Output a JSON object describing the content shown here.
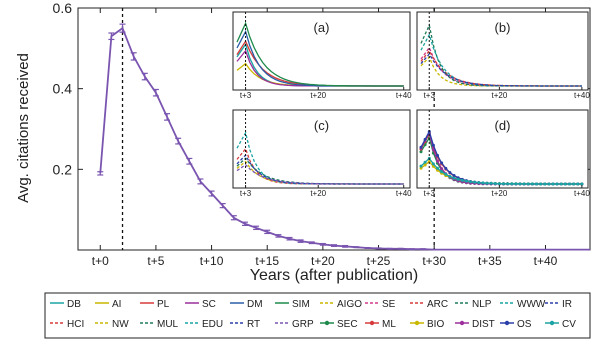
{
  "chart_data": {
    "type": "line",
    "xlabel": "Years (after publication)",
    "ylabel": "Avg. citations received",
    "ylim": [
      0.0,
      0.6
    ],
    "yticks": [
      "0.2",
      "0.4",
      "0.6"
    ],
    "yticks_values": [
      0.2,
      0.4,
      0.6
    ],
    "xticks": [
      "t+0",
      "t+5",
      "t+10",
      "t+15",
      "t+20",
      "t+25",
      "t+30",
      "t+35",
      "t+40"
    ],
    "xticks_values": [
      0,
      5,
      10,
      15,
      20,
      25,
      30,
      35,
      40
    ],
    "xlim": [
      -2,
      44
    ],
    "grid": false,
    "vlines": [
      2,
      30
    ],
    "series": [
      {
        "color": "#7a55b0",
        "x": [
          0,
          1,
          2,
          3,
          4,
          5,
          6,
          7,
          8,
          9,
          10,
          11,
          12,
          13,
          14,
          15,
          16,
          17,
          18,
          19,
          20,
          21,
          22,
          23,
          24,
          25,
          26,
          27,
          28,
          29,
          30,
          31,
          32,
          33,
          34,
          35,
          36,
          37,
          38,
          39,
          40,
          41,
          42,
          43,
          44
        ],
        "values": [
          0.19,
          0.53,
          0.55,
          0.48,
          0.43,
          0.39,
          0.33,
          0.27,
          0.22,
          0.17,
          0.14,
          0.11,
          0.08,
          0.065,
          0.055,
          0.045,
          0.035,
          0.028,
          0.022,
          0.018,
          0.014,
          0.011,
          0.009,
          0.007,
          0.005,
          0.004,
          0.003,
          0.003,
          0.002,
          0.002,
          0.001,
          0.001,
          0.001,
          0.001,
          0.001,
          0.001,
          0.001,
          0.001,
          0.001,
          0.001,
          0.001,
          0.001,
          0.001,
          0.001,
          0.001
        ],
        "error": [
          0.004,
          0.008,
          0.01,
          0.009,
          0.008,
          0.008,
          0.008,
          0.007,
          0.007,
          0.006,
          0.006,
          0.005,
          0.005,
          0.004,
          0.004,
          0.004,
          0.003,
          0.003,
          0.003,
          0.002,
          0.002,
          0.002,
          0.002,
          0.001,
          0.001,
          0.001,
          0.001,
          0.001,
          0.001,
          0.001,
          0,
          0,
          0,
          0,
          0,
          0,
          0,
          0,
          0,
          0,
          0,
          0,
          0,
          0,
          0
        ]
      }
    ],
    "insets": [
      {
        "label": "(a)",
        "xticks": [
          "t+3",
          "t+20",
          "t+40"
        ],
        "xticks_values": [
          3,
          20,
          40
        ],
        "vline": 3,
        "ymax": 1.0,
        "series": [
          {
            "color": "#1aa3a3",
            "dash": "solid",
            "peak": 0.65
          },
          {
            "color": "#c9b700",
            "dash": "solid",
            "peak": 0.35
          },
          {
            "color": "#d63b3b",
            "dash": "solid",
            "peak": 0.7
          },
          {
            "color": "#9b2f9b",
            "dash": "solid",
            "peak": 0.55
          },
          {
            "color": "#2a5da8",
            "dash": "solid",
            "peak": 0.85
          },
          {
            "color": "#1f8a4c",
            "dash": "solid",
            "peak": 0.98
          }
        ]
      },
      {
        "label": "(b)",
        "xticks": [
          "t+3",
          "t+20",
          "t+40"
        ],
        "xticks_values": [
          3,
          20,
          40
        ],
        "vline": 3,
        "ymax": 1.0,
        "series": [
          {
            "color": "#c9b700",
            "dash": "dash",
            "peak": 0.45
          },
          {
            "color": "#d03a8a",
            "dash": "dash",
            "peak": 0.6
          },
          {
            "color": "#d63b3b",
            "dash": "dash",
            "peak": 0.55
          },
          {
            "color": "#1f7a5a",
            "dash": "dash",
            "peak": 0.95
          },
          {
            "color": "#1aa3a3",
            "dash": "dash",
            "peak": 0.8
          },
          {
            "color": "#2a3fa8",
            "dash": "dash",
            "peak": 0.5
          }
        ]
      },
      {
        "label": "(c)",
        "xticks": [
          "t+3",
          "t+20",
          "t+40"
        ],
        "xticks_values": [
          3,
          20,
          40
        ],
        "vline": 3,
        "ymax": 1.0,
        "series": [
          {
            "color": "#d63b3b",
            "dash": "dash",
            "peak": 0.55
          },
          {
            "color": "#c9b700",
            "dash": "dash",
            "peak": 0.35
          },
          {
            "color": "#1f7a5a",
            "dash": "dash",
            "peak": 0.4
          },
          {
            "color": "#1aa3a3",
            "dash": "dash",
            "peak": 0.8
          },
          {
            "color": "#2a3fa8",
            "dash": "dash",
            "peak": 0.45
          },
          {
            "color": "#7a55b0",
            "dash": "dash",
            "peak": 0.3
          }
        ]
      },
      {
        "label": "(d)",
        "xticks": [
          "t+3",
          "t+20",
          "t+40"
        ],
        "xticks_values": [
          3,
          20,
          40
        ],
        "vline": 3,
        "ymax": 1.0,
        "series": [
          {
            "color": "#1f8a4c",
            "dash": "solid",
            "peak": 0.72,
            "markers": true
          },
          {
            "color": "#d63b3b",
            "dash": "solid",
            "peak": 0.78,
            "markers": true
          },
          {
            "color": "#c9b700",
            "dash": "solid",
            "peak": 0.35,
            "markers": true
          },
          {
            "color": "#9b2f9b",
            "dash": "solid",
            "peak": 0.8,
            "markers": true
          },
          {
            "color": "#2a3fa8",
            "dash": "solid",
            "peak": 0.82,
            "markers": true
          },
          {
            "color": "#1aa3a3",
            "dash": "solid",
            "peak": 0.4,
            "markers": true
          }
        ]
      }
    ]
  },
  "legend": {
    "placement": "bottom",
    "rows": [
      [
        {
          "label": "DB",
          "color": "#1aa3a3",
          "dash": "solid"
        },
        {
          "label": "AI",
          "color": "#c9b700",
          "dash": "solid"
        },
        {
          "label": "PL",
          "color": "#d63b3b",
          "dash": "solid"
        },
        {
          "label": "SC",
          "color": "#9b2f9b",
          "dash": "solid"
        },
        {
          "label": "DM",
          "color": "#2a5da8",
          "dash": "solid"
        },
        {
          "label": "SIM",
          "color": "#1f8a4c",
          "dash": "solid"
        },
        {
          "label": "AIGO",
          "color": "#c9b700",
          "dash": "dash"
        },
        {
          "label": "SE",
          "color": "#d03a8a",
          "dash": "dash"
        },
        {
          "label": "ARC",
          "color": "#d63b3b",
          "dash": "dash"
        },
        {
          "label": "NLP",
          "color": "#1f7a5a",
          "dash": "dash"
        },
        {
          "label": "WWW",
          "color": "#1aa3a3",
          "dash": "dash"
        },
        {
          "label": "IR",
          "color": "#2a3fa8",
          "dash": "dash"
        }
      ],
      [
        {
          "label": "HCI",
          "color": "#d63b3b",
          "dash": "dash"
        },
        {
          "label": "NW",
          "color": "#c9b700",
          "dash": "dash"
        },
        {
          "label": "MUL",
          "color": "#1f7a5a",
          "dash": "dash"
        },
        {
          "label": "EDU",
          "color": "#1aa3a3",
          "dash": "dash"
        },
        {
          "label": "RT",
          "color": "#2a3fa8",
          "dash": "dash"
        },
        {
          "label": "GRP",
          "color": "#7a55b0",
          "dash": "dash"
        },
        {
          "label": "SEC",
          "color": "#1f8a4c",
          "dash": "solid",
          "marker": true
        },
        {
          "label": "ML",
          "color": "#d63b3b",
          "dash": "solid",
          "marker": true
        },
        {
          "label": "BIO",
          "color": "#c9b700",
          "dash": "solid",
          "marker": true
        },
        {
          "label": "DIST",
          "color": "#9b2f9b",
          "dash": "solid",
          "marker": true
        },
        {
          "label": "OS",
          "color": "#2a3fa8",
          "dash": "solid",
          "marker": true
        },
        {
          "label": "CV",
          "color": "#1aa3a3",
          "dash": "solid",
          "marker": true
        }
      ]
    ]
  }
}
